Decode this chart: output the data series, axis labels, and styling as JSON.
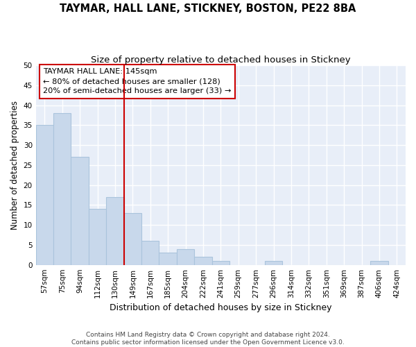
{
  "title": "TAYMAR, HALL LANE, STICKNEY, BOSTON, PE22 8BA",
  "subtitle": "Size of property relative to detached houses in Stickney",
  "xlabel": "Distribution of detached houses by size in Stickney",
  "ylabel": "Number of detached properties",
  "bar_labels": [
    "57sqm",
    "75sqm",
    "94sqm",
    "112sqm",
    "130sqm",
    "149sqm",
    "167sqm",
    "185sqm",
    "204sqm",
    "222sqm",
    "241sqm",
    "259sqm",
    "277sqm",
    "296sqm",
    "314sqm",
    "332sqm",
    "351sqm",
    "369sqm",
    "387sqm",
    "406sqm",
    "424sqm"
  ],
  "bar_values": [
    35,
    38,
    27,
    14,
    17,
    13,
    6,
    3,
    4,
    2,
    1,
    0,
    0,
    1,
    0,
    0,
    0,
    0,
    0,
    1,
    0
  ],
  "bar_color": "#c8d8eb",
  "bar_edge_color": "#aac4dc",
  "ylim": [
    0,
    50
  ],
  "yticks": [
    0,
    5,
    10,
    15,
    20,
    25,
    30,
    35,
    40,
    45,
    50
  ],
  "vline_x": 5.0,
  "vline_color": "#cc0000",
  "annotation_text": "TAYMAR HALL LANE: 145sqm\n← 80% of detached houses are smaller (128)\n20% of semi-detached houses are larger (33) →",
  "annotation_box_color": "#cc0000",
  "footnote": "Contains HM Land Registry data © Crown copyright and database right 2024.\nContains public sector information licensed under the Open Government Licence v3.0.",
  "bg_color": "#ffffff",
  "plot_bg_color": "#e8eef8",
  "grid_color": "#ffffff",
  "title_fontsize": 10.5,
  "subtitle_fontsize": 9.5,
  "tick_fontsize": 7.5,
  "ylabel_fontsize": 8.5,
  "xlabel_fontsize": 9
}
